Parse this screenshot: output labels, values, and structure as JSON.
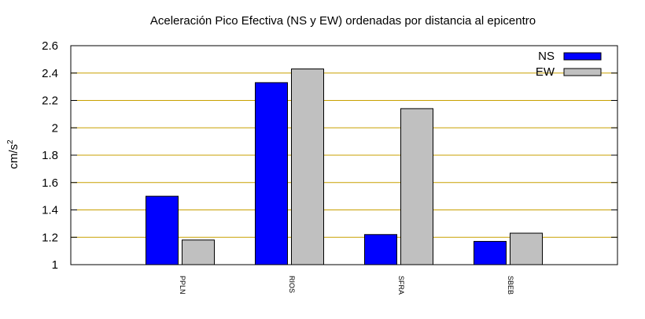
{
  "chart_data": {
    "type": "bar",
    "title": "Aceleración Pico Efectiva (NS y EW) ordenadas por distancia al epicentro",
    "xlabel": "",
    "ylabel": "cm/s",
    "ylabel_superscript": "2",
    "categories": [
      "PPLN",
      "RIOS",
      "SFRA",
      "SBEB"
    ],
    "series": [
      {
        "name": "NS",
        "color": "#0000ff",
        "values": [
          1.5,
          2.33,
          1.22,
          1.17
        ]
      },
      {
        "name": "EW",
        "color": "#c0c0c0",
        "values": [
          1.18,
          2.43,
          2.14,
          1.23
        ]
      }
    ],
    "ylim": [
      1,
      2.6
    ],
    "yticks": [
      "1",
      "1.2",
      "1.4",
      "1.6",
      "1.8",
      "2",
      "2.2",
      "2.4",
      "2.6"
    ],
    "grid": true,
    "grid_color": "#c8a000",
    "legend_position": "top-right"
  }
}
